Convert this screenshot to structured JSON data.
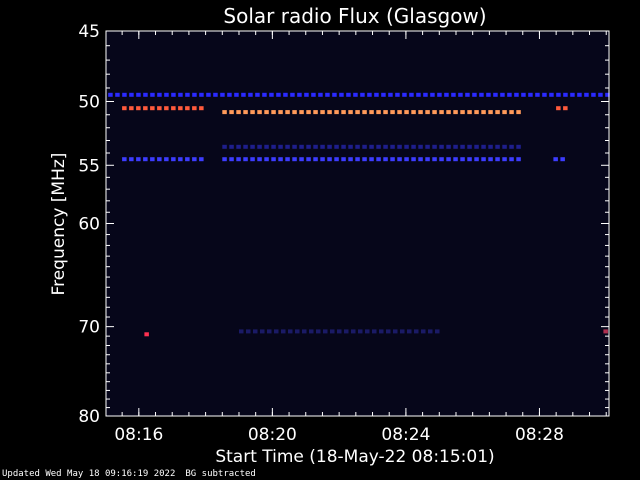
{
  "chart_data": {
    "type": "heatmap",
    "title": "Solar radio Flux (Glasgow)",
    "xlabel": "Start Time (18-May-22 08:15:01)",
    "ylabel": "Frequency [MHz]",
    "xlim": [
      "08:15:01",
      "08:30:05"
    ],
    "ylim": [
      45,
      80
    ],
    "y_reversed": true,
    "y_scale": "log",
    "x_ticks": [
      "08:16",
      "08:20",
      "08:24",
      "08:28"
    ],
    "y_ticks": [
      45,
      50,
      55,
      60,
      70,
      80
    ],
    "background_color": "#06061a",
    "features": [
      {
        "name": "blue-flecks-49.5MHz",
        "freq_mhz": 49.5,
        "start": "08:15:05",
        "end": "08:30:05",
        "color": "#2a2aff"
      },
      {
        "name": "red-band-50.5MHz-a",
        "freq_mhz": 50.5,
        "start": "08:15:30",
        "end": "08:17:50",
        "color": "#ff5a3c"
      },
      {
        "name": "orange-band-50.8MHz",
        "freq_mhz": 50.8,
        "start": "08:18:30",
        "end": "08:27:30",
        "color": "#ff9a5a"
      },
      {
        "name": "red-band-50.5MHz-b",
        "freq_mhz": 50.5,
        "start": "08:28:30",
        "end": "08:28:45",
        "color": "#ff5a3c"
      },
      {
        "name": "blue-band-53.5MHz",
        "freq_mhz": 53.5,
        "start": "08:18:30",
        "end": "08:27:30",
        "color": "#1e1e8c"
      },
      {
        "name": "blue-band-54.5MHz-a",
        "freq_mhz": 54.5,
        "start": "08:15:30",
        "end": "08:17:50",
        "color": "#3c3cff"
      },
      {
        "name": "blue-band-54.5MHz-b",
        "freq_mhz": 54.5,
        "start": "08:18:30",
        "end": "08:27:30",
        "color": "#3c3cff"
      },
      {
        "name": "blue-band-54.5MHz-c",
        "freq_mhz": 54.5,
        "start": "08:28:25",
        "end": "08:28:45",
        "color": "#3c3cff"
      },
      {
        "name": "faint-band-70.5MHz",
        "freq_mhz": 70.5,
        "start": "08:19:00",
        "end": "08:25:00",
        "color": "#1a1a66"
      },
      {
        "name": "red-spot-70.8MHz",
        "freq_mhz": 70.8,
        "start": "08:16:10",
        "end": "08:16:20",
        "color": "#ff3050"
      },
      {
        "name": "red-spot-70.5MHz-end",
        "freq_mhz": 70.5,
        "start": "08:29:55",
        "end": "08:30:05",
        "color": "#b03050"
      }
    ]
  },
  "footer": {
    "updated": "Updated Wed May 18 09:16:19 2022",
    "note": "BG subtracted"
  }
}
